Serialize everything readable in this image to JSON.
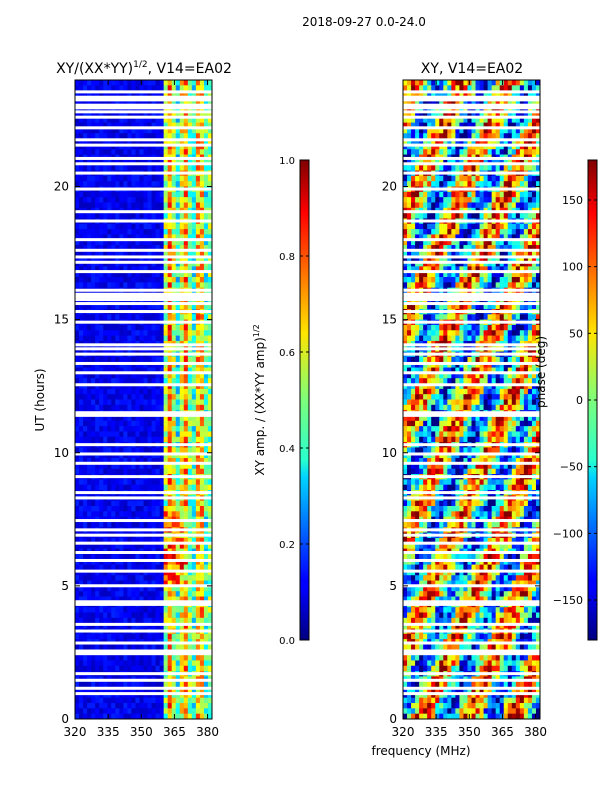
{
  "figure_title": "2018-09-27 0.0-24.0",
  "chart_data": [
    {
      "type": "heatmap",
      "title_prefix": "XY/(XX*YY)",
      "title_exponent": "1/2",
      "title_suffix": ", V14=EA02",
      "xlabel": "",
      "ylabel": "UT (hours)",
      "xlim": [
        320,
        382
      ],
      "ylim": [
        0,
        24
      ],
      "x_ticks": [
        320,
        335,
        350,
        365,
        380
      ],
      "y_ticks": [
        0,
        5,
        10,
        15,
        20
      ],
      "colormap": "jet",
      "colorbar": {
        "label_prefix": "XY amp. / (XX*YY amp)",
        "label_exponent": "1/2",
        "range": [
          0.0,
          1.0
        ],
        "ticks": [
          "0.0",
          "0.2",
          "0.4",
          "0.6",
          "0.8",
          "1.0"
        ],
        "tick_values": [
          0.0,
          0.2,
          0.4,
          0.6,
          0.8,
          1.0
        ]
      },
      "description_values": "low amplitude (~0.05-0.15) below 360 MHz, higher (0.3-0.9) in 360-382 MHz band"
    },
    {
      "type": "heatmap",
      "title": "XY, V14=EA02",
      "xlabel": "frequency (MHz)",
      "ylabel": "",
      "xlim": [
        320,
        382
      ],
      "ylim": [
        0,
        24
      ],
      "x_ticks": [
        320,
        335,
        350,
        365,
        380
      ],
      "y_ticks": [
        0,
        5,
        10,
        15,
        20
      ],
      "colormap": "jet",
      "colorbar": {
        "label": "phase (deg)",
        "range": [
          -180,
          180
        ],
        "ticks": [
          "−150",
          "−100",
          "−50",
          "0",
          "50",
          "100",
          "150"
        ],
        "tick_values": [
          -150,
          -100,
          -50,
          0,
          50,
          100,
          150
        ]
      }
    }
  ],
  "flagged_hours": [
    0.95,
    1.15,
    1.45,
    1.7,
    2.45,
    2.55,
    2.85,
    3.3,
    3.55,
    4.3,
    4.4,
    5.0,
    5.55,
    5.95,
    6.25,
    6.6,
    6.9,
    7.1,
    7.45,
    8.3,
    8.5,
    9.1,
    9.6,
    9.95,
    10.3,
    11.4,
    11.5,
    12.55,
    13.0,
    13.35,
    13.7,
    13.9,
    14.05,
    14.9,
    15.3,
    15.6,
    15.75,
    15.85,
    15.95,
    16.1,
    16.8,
    17.15,
    17.35,
    17.6,
    18.0,
    18.7,
    19.05,
    19.9,
    20.5,
    20.85,
    21.05,
    21.55,
    21.75,
    22.2,
    22.6,
    22.8,
    22.95,
    23.05,
    23.25,
    23.35,
    23.55
  ]
}
